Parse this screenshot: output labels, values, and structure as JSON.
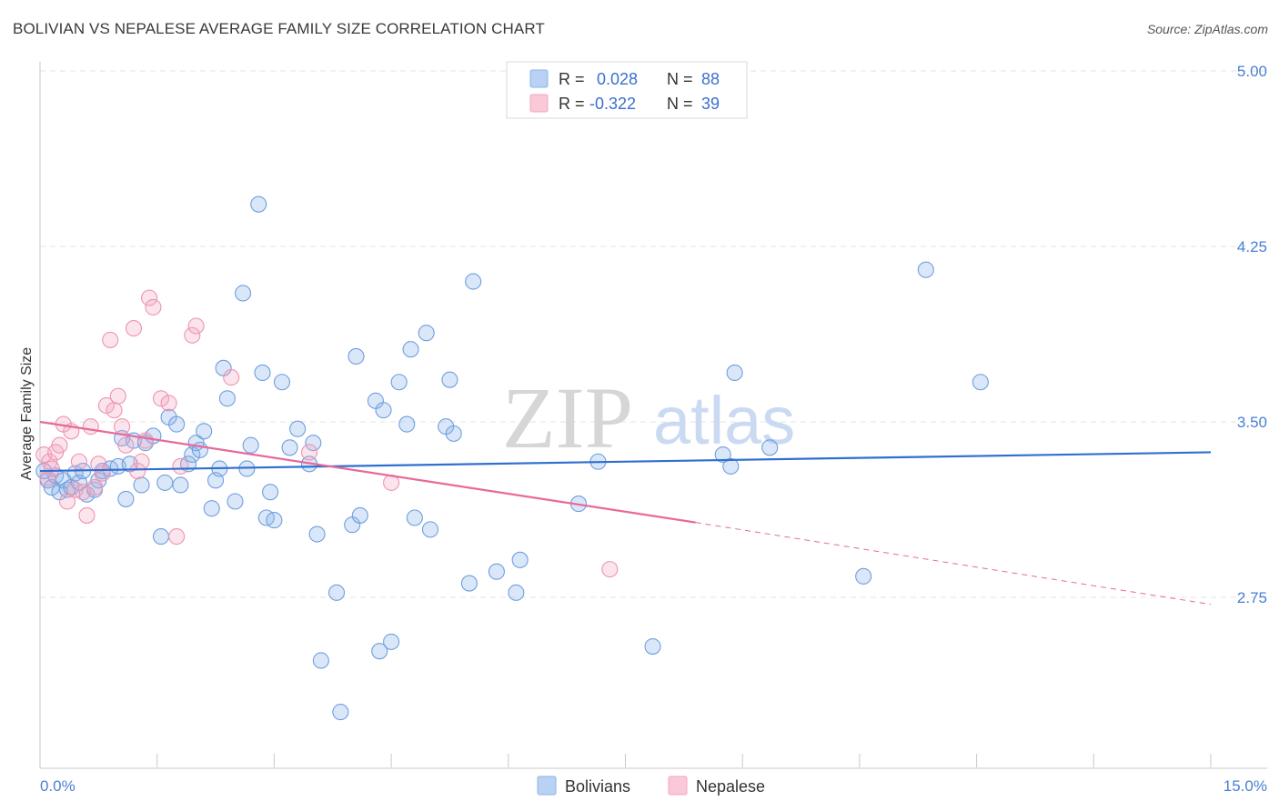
{
  "title": "BOLIVIAN VS NEPALESE AVERAGE FAMILY SIZE CORRELATION CHART",
  "source": "Source: ZipAtlas.com",
  "watermark": {
    "zip": "ZIP",
    "atlas": "atlas"
  },
  "legend": {
    "r_label": "R =",
    "n_label": "N =",
    "rows": [
      {
        "r": "0.028",
        "n": "88"
      },
      {
        "r": "-0.322",
        "n": "39"
      }
    ]
  },
  "bottom_legend": [
    "Bolivians",
    "Nepalese"
  ],
  "chart_data": {
    "type": "scatter",
    "title": "BOLIVIAN VS NEPALESE AVERAGE FAMILY SIZE CORRELATION CHART",
    "xlabel": "",
    "ylabel": "Average Family Size",
    "xlim": [
      0,
      15
    ],
    "ylim": [
      2.0,
      5.1
    ],
    "x_tick_labels": [
      "0.0%",
      "15.0%"
    ],
    "y_ticks": [
      2.75,
      3.5,
      4.25,
      5.0
    ],
    "y_tick_labels": [
      "2.75",
      "3.50",
      "4.25",
      "5.00"
    ],
    "grid": "horizontal dashed",
    "colors": {
      "bolivians": "#8bb3e8",
      "bolivians_line": "#2f6fd0",
      "nepalese": "#f3a5bf",
      "nepalese_line": "#e8699a"
    },
    "series": [
      {
        "name": "Bolivians",
        "r": 0.028,
        "n": 88,
        "trend": {
          "x": [
            0,
            15
          ],
          "y": [
            3.29,
            3.37
          ]
        },
        "points": [
          [
            0.1,
            3.25
          ],
          [
            0.15,
            3.22
          ],
          [
            0.2,
            3.27
          ],
          [
            0.25,
            3.2
          ],
          [
            0.3,
            3.25
          ],
          [
            0.35,
            3.21
          ],
          [
            0.4,
            3.22
          ],
          [
            0.45,
            3.28
          ],
          [
            0.5,
            3.24
          ],
          [
            0.55,
            3.29
          ],
          [
            0.6,
            3.19
          ],
          [
            0.7,
            3.21
          ],
          [
            0.75,
            3.25
          ],
          [
            0.8,
            3.29
          ],
          [
            0.9,
            3.3
          ],
          [
            1.0,
            3.31
          ],
          [
            1.05,
            3.43
          ],
          [
            1.1,
            3.17
          ],
          [
            1.15,
            3.32
          ],
          [
            1.2,
            3.42
          ],
          [
            1.3,
            3.23
          ],
          [
            1.35,
            3.41
          ],
          [
            1.45,
            3.44
          ],
          [
            1.55,
            3.01
          ],
          [
            1.6,
            3.24
          ],
          [
            1.65,
            3.52
          ],
          [
            1.75,
            3.49
          ],
          [
            1.8,
            3.23
          ],
          [
            1.9,
            3.32
          ],
          [
            1.95,
            3.36
          ],
          [
            2.0,
            3.41
          ],
          [
            2.05,
            3.38
          ],
          [
            2.1,
            3.46
          ],
          [
            2.2,
            3.13
          ],
          [
            2.25,
            3.25
          ],
          [
            2.3,
            3.3
          ],
          [
            2.35,
            3.73
          ],
          [
            2.4,
            3.6
          ],
          [
            2.5,
            3.16
          ],
          [
            2.6,
            4.05
          ],
          [
            2.65,
            3.3
          ],
          [
            2.7,
            3.4
          ],
          [
            2.8,
            4.43
          ],
          [
            2.85,
            3.71
          ],
          [
            2.9,
            3.09
          ],
          [
            2.95,
            3.2
          ],
          [
            3.0,
            3.08
          ],
          [
            3.1,
            3.67
          ],
          [
            3.2,
            3.39
          ],
          [
            3.3,
            3.47
          ],
          [
            3.45,
            3.32
          ],
          [
            3.5,
            3.41
          ],
          [
            3.55,
            3.02
          ],
          [
            3.6,
            2.48
          ],
          [
            3.8,
            2.77
          ],
          [
            3.85,
            2.26
          ],
          [
            4.0,
            3.06
          ],
          [
            4.05,
            3.78
          ],
          [
            4.1,
            3.1
          ],
          [
            4.3,
            3.59
          ],
          [
            4.35,
            2.52
          ],
          [
            4.4,
            3.55
          ],
          [
            4.5,
            2.56
          ],
          [
            4.6,
            3.67
          ],
          [
            4.7,
            3.49
          ],
          [
            4.75,
            3.81
          ],
          [
            4.8,
            3.09
          ],
          [
            4.95,
            3.88
          ],
          [
            5.0,
            3.04
          ],
          [
            5.2,
            3.48
          ],
          [
            5.25,
            3.68
          ],
          [
            5.3,
            3.45
          ],
          [
            5.5,
            2.81
          ],
          [
            5.55,
            4.1
          ],
          [
            5.85,
            2.86
          ],
          [
            6.1,
            2.77
          ],
          [
            6.15,
            2.91
          ],
          [
            6.9,
            3.15
          ],
          [
            7.15,
            3.33
          ],
          [
            7.85,
            2.54
          ],
          [
            8.75,
            3.36
          ],
          [
            8.85,
            3.31
          ],
          [
            8.9,
            3.71
          ],
          [
            9.35,
            3.39
          ],
          [
            10.55,
            2.84
          ],
          [
            11.35,
            4.15
          ],
          [
            12.05,
            3.67
          ],
          [
            0.05,
            3.29
          ]
        ]
      },
      {
        "name": "Nepalese",
        "r": -0.322,
        "n": 39,
        "trend": {
          "x": [
            0,
            8.4
          ],
          "y": [
            3.5,
            3.07
          ],
          "dashed_x": [
            8.4,
            15
          ],
          "dashed_y": [
            3.07,
            2.72
          ]
        },
        "points": [
          [
            0.05,
            3.36
          ],
          [
            0.1,
            3.26
          ],
          [
            0.12,
            3.33
          ],
          [
            0.15,
            3.3
          ],
          [
            0.2,
            3.37
          ],
          [
            0.25,
            3.4
          ],
          [
            0.3,
            3.49
          ],
          [
            0.35,
            3.16
          ],
          [
            0.4,
            3.46
          ],
          [
            0.45,
            3.21
          ],
          [
            0.5,
            3.33
          ],
          [
            0.55,
            3.2
          ],
          [
            0.6,
            3.1
          ],
          [
            0.65,
            3.48
          ],
          [
            0.7,
            3.22
          ],
          [
            0.75,
            3.32
          ],
          [
            0.8,
            3.28
          ],
          [
            0.85,
            3.57
          ],
          [
            0.9,
            3.85
          ],
          [
            0.95,
            3.55
          ],
          [
            1.0,
            3.61
          ],
          [
            1.05,
            3.48
          ],
          [
            1.1,
            3.4
          ],
          [
            1.2,
            3.9
          ],
          [
            1.25,
            3.29
          ],
          [
            1.3,
            3.33
          ],
          [
            1.35,
            3.42
          ],
          [
            1.4,
            4.03
          ],
          [
            1.45,
            3.99
          ],
          [
            1.55,
            3.6
          ],
          [
            1.65,
            3.58
          ],
          [
            1.75,
            3.01
          ],
          [
            1.8,
            3.31
          ],
          [
            1.95,
            3.87
          ],
          [
            2.0,
            3.91
          ],
          [
            2.45,
            3.69
          ],
          [
            3.45,
            3.37
          ],
          [
            4.5,
            3.24
          ],
          [
            7.3,
            2.87
          ]
        ]
      }
    ]
  }
}
